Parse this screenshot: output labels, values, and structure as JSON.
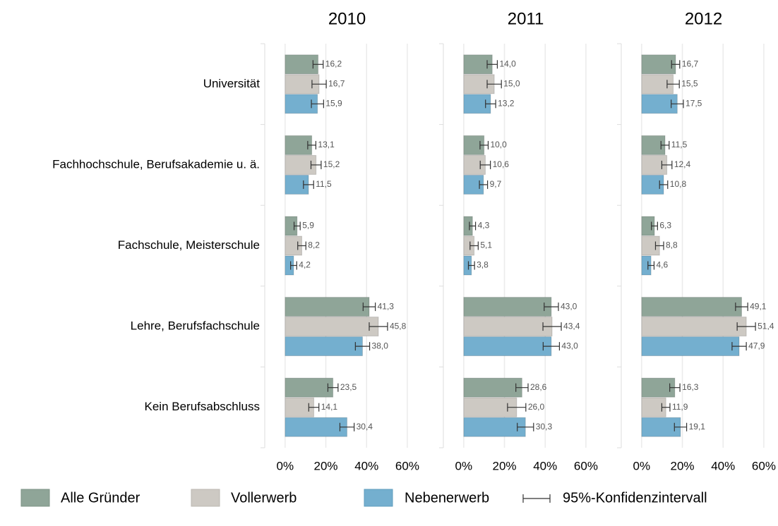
{
  "chart_data": {
    "type": "bar",
    "orientation": "horizontal",
    "categories": [
      "Universität",
      "Fachhochschule, Berufsakademie u. ä.",
      "Fachschule, Meisterschule",
      "Lehre, Berufsfachschule",
      "Kein Berufsabschluss"
    ],
    "series": [
      {
        "name": "Alle Gründer",
        "color": "#8fa598"
      },
      {
        "name": "Vollerwerb",
        "color": "#cdc9c3"
      },
      {
        "name": "Nebenerwerb",
        "color": "#74afcf"
      }
    ],
    "error_label": "95%-Konfidenzintervall",
    "xlim": [
      -10,
      68
    ],
    "xticks": [
      {
        "value": 0,
        "label": "0%"
      },
      {
        "value": 20,
        "label": "20%"
      },
      {
        "value": 40,
        "label": "40%"
      },
      {
        "value": 60,
        "label": "60%"
      }
    ],
    "grid": true,
    "panels": [
      {
        "title": "2010",
        "series": [
          {
            "values": [
              16.2,
              13.1,
              5.9,
              41.3,
              23.5
            ],
            "value_labels": [
              "16,2",
              "13,1",
              "5,9",
              "41,3",
              "23,5"
            ],
            "errors": [
              2.5,
              2,
              1.5,
              3,
              2.5
            ]
          },
          {
            "values": [
              16.7,
              15.2,
              8.2,
              45.8,
              14.1
            ],
            "value_labels": [
              "16,7",
              "15,2",
              "8,2",
              "45,8",
              "14,1"
            ],
            "errors": [
              3.5,
              2.5,
              2,
              4.5,
              2.5
            ]
          },
          {
            "values": [
              15.9,
              11.5,
              4.2,
              38.0,
              30.4
            ],
            "value_labels": [
              "15,9",
              "11,5",
              "4,2",
              "38,0",
              "30,4"
            ],
            "errors": [
              3,
              2.5,
              1.5,
              3.5,
              3.5
            ]
          }
        ]
      },
      {
        "title": "2011",
        "series": [
          {
            "values": [
              14.0,
              10.0,
              4.3,
              43.0,
              28.6
            ],
            "value_labels": [
              "14,0",
              "10,0",
              "4,3",
              "43,0",
              "28,6"
            ],
            "errors": [
              2.5,
              2,
              1.5,
              3.5,
              3
            ]
          },
          {
            "values": [
              15.0,
              10.6,
              5.1,
              43.4,
              26.0
            ],
            "value_labels": [
              "15,0",
              "10,6",
              "5,1",
              "43,4",
              "26,0"
            ],
            "errors": [
              3.5,
              2.5,
              2,
              4.5,
              4.5
            ]
          },
          {
            "values": [
              13.2,
              9.7,
              3.8,
              43.0,
              30.3
            ],
            "value_labels": [
              "13,2",
              "9,7",
              "3,8",
              "43,0",
              "30,3"
            ],
            "errors": [
              2.5,
              2,
              1.5,
              4,
              4
            ]
          }
        ]
      },
      {
        "title": "2012",
        "series": [
          {
            "values": [
              16.7,
              11.5,
              6.3,
              49.1,
              16.3
            ],
            "value_labels": [
              "16,7",
              "11,5",
              "6,3",
              "49,1",
              "16,3"
            ],
            "errors": [
              2,
              2,
              1.5,
              3,
              2.5
            ]
          },
          {
            "values": [
              15.5,
              12.4,
              8.8,
              51.4,
              11.9
            ],
            "value_labels": [
              "15,5",
              "12,4",
              "8,8",
              "51,4",
              "11,9"
            ],
            "errors": [
              3,
              2.5,
              2,
              4.5,
              2
            ]
          },
          {
            "values": [
              17.5,
              10.8,
              4.6,
              47.9,
              19.1
            ],
            "value_labels": [
              "17,5",
              "10,8",
              "4,6",
              "47,9",
              "19,1"
            ],
            "errors": [
              3,
              2,
              1.5,
              3.5,
              3
            ]
          }
        ]
      }
    ]
  }
}
